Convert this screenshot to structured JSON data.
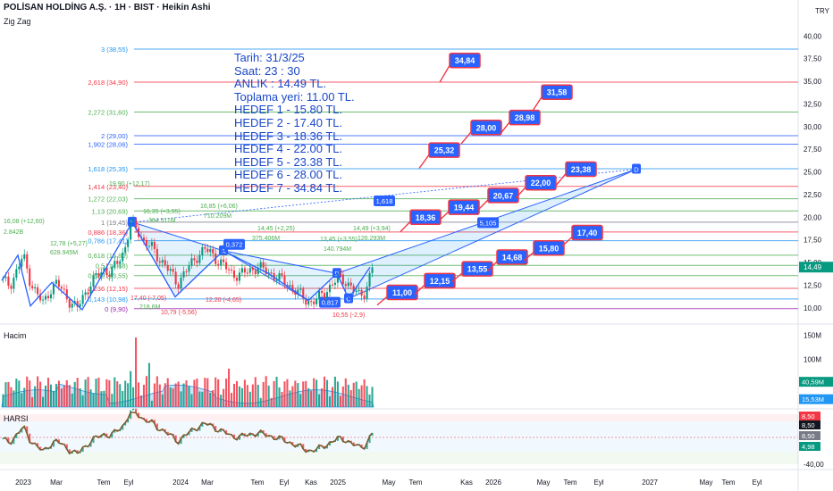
{
  "header": {
    "title": "POLİSAN HOLDİNG A.Ş. · 1H · BIST · Heikin Ashi",
    "indicator": "Zig Zag",
    "currency": "TRY"
  },
  "annotation": {
    "lines": [
      "Tarih:   31/3/25",
      "Saat:      23 : 30",
      "ANLIK :  14.49 TL.",
      "Toplama yeri: 11.00 TL.",
      "HEDEF 1 - 15.80 TL.",
      "HEDEF 2 - 17.40 TL.",
      "HEDEF 3 - 18.36 TL.",
      "HEDEF 4 - 22.00 TL.",
      "HEDEF 5 - 23.38 TL.",
      "HEDEF 6 - 28.00 TL.",
      "HEDEF 7 - 34.84 TL."
    ]
  },
  "chart_data": {
    "type": "candlestick",
    "price_axis": {
      "min": 10,
      "max": 40,
      "ticks": [
        "40,00",
        "37,50",
        "35,00",
        "32,50",
        "30,00",
        "27,50",
        "25,00",
        "22,50",
        "20,00",
        "17,50",
        "15,00",
        "12,50",
        "10,00"
      ],
      "current_label": "14,49",
      "current": 14.49
    },
    "time_axis": [
      "2023",
      "Mar",
      "Tem",
      "Eyl",
      "2024",
      "Mar",
      "Tem",
      "Eyl",
      "Kas",
      "2025",
      "May",
      "Tem",
      "Kas",
      "2026",
      "May",
      "Tem",
      "Eyl",
      "2027",
      "May",
      "Tem",
      "Eyl"
    ],
    "fib_levels": [
      {
        "label": "3 (38,55)",
        "value": 38.55,
        "color": "#2196f3"
      },
      {
        "label": "2,618 (34,90)",
        "value": 34.9,
        "color": "#f23645"
      },
      {
        "label": "2,272 (31,60)",
        "value": 31.6,
        "color": "#4caf50"
      },
      {
        "label": "2 (29,00)",
        "value": 29.0,
        "color": "#2962ff"
      },
      {
        "label": "1,902 (28,06)",
        "value": 28.06,
        "color": "#2962ff"
      },
      {
        "label": "1,618 (25,35)",
        "value": 25.35,
        "color": "#2196f3"
      },
      {
        "label": "1,414 (23,40)",
        "value": 23.4,
        "color": "#f23645"
      },
      {
        "label": "1,272 (22,03)",
        "value": 22.03,
        "color": "#4caf50"
      },
      {
        "label": "1,13 (20,69)",
        "value": 20.69,
        "color": "#4caf50"
      },
      {
        "label": "1 (19,45)",
        "value": 19.45,
        "color": "#787b86"
      },
      {
        "label": "0,886 (18,36)",
        "value": 18.36,
        "color": "#f23645"
      },
      {
        "label": "0,786 (17,41)",
        "value": 17.41,
        "color": "#2196f3"
      },
      {
        "label": "0,618 (15,80)",
        "value": 15.8,
        "color": "#4caf50"
      },
      {
        "label": "0,5 (14,68)",
        "value": 14.68,
        "color": "#4caf50"
      },
      {
        "label": "0,382 (13,55)",
        "value": 13.55,
        "color": "#4caf50"
      },
      {
        "label": "0,236 (12,15)",
        "value": 12.15,
        "color": "#f23645"
      },
      {
        "label": "0,143 (10,98)",
        "value": 10.98,
        "color": "#2196f3"
      },
      {
        "label": "0 (9,90)",
        "value": 9.9,
        "color": "#9c27b0"
      }
    ],
    "targets_upper": [
      "11,00",
      "12,15",
      "13,55",
      "14,68",
      "15,80",
      "17,40"
    ],
    "targets_mid": [
      "18,36",
      "19,44",
      "20,67",
      "22,00",
      "23,38"
    ],
    "targets_top": [
      "25,32",
      "28,00",
      "28,98",
      "31,58",
      "34,84"
    ],
    "pattern_labels": {
      "X": "X",
      "A": "A",
      "B": "B",
      "C": "C",
      "D": "D",
      "ratio_ab": "0,372",
      "ratio_bc": "0,817",
      "ratio_xd": "1,618",
      "ratio_cd": "5,105"
    },
    "zigzag_labels": [
      "16,08 (+12,60)",
      "2.842B",
      "12,78 (+5,27)",
      "628.945M",
      "16,35 (+3,95)",
      "364.511M",
      "16,85 (+6,06)",
      "710.209M",
      "14,45 (+2,25)",
      "375.406M",
      "13,45 (+3,55)",
      "140.794M",
      "14,49 (+3,94)",
      "126.293M",
      "17,40 (-7,05)",
      "218,6M",
      "10,79 (-5,56)",
      "12,20 (-4,65)",
      "10,55 (-2,9)",
      "19,90 (+12,17)"
    ],
    "volume": {
      "label": "Hacim",
      "ticks": [
        "150M",
        "100M",
        "50M"
      ],
      "current": "40,59M",
      "average": "15,53M"
    },
    "harsi": {
      "label": "HARSI",
      "ticks": [
        "8,50",
        "4,98",
        "-40,00"
      ],
      "current_labels": [
        "8,50",
        "8,50",
        "8,50",
        "4,98"
      ]
    }
  }
}
